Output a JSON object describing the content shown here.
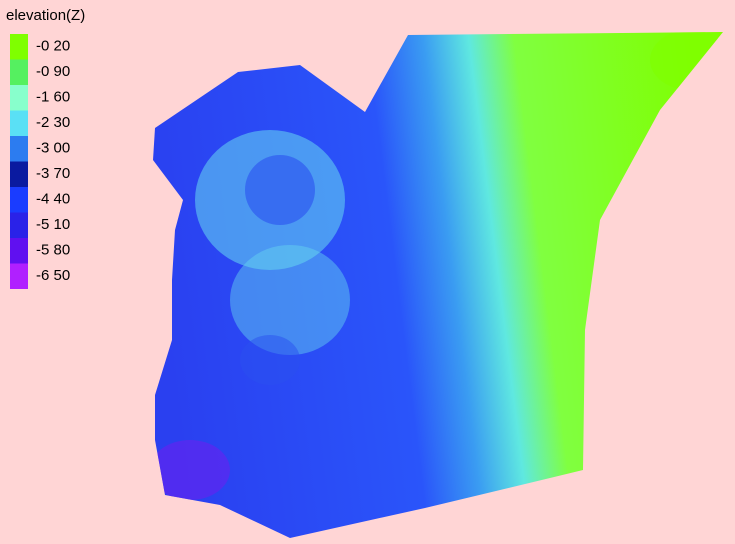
{
  "legend": {
    "title": "elevation(Z)",
    "entries": [
      {
        "label": "-0 20",
        "color": "#7fff00"
      },
      {
        "label": "-0 90",
        "color": "#55f060"
      },
      {
        "label": "-1 60",
        "color": "#88ffcc"
      },
      {
        "label": "-2 30",
        "color": "#5ae0f5"
      },
      {
        "label": "-3 00",
        "color": "#2c7cf0"
      },
      {
        "label": "-3 70",
        "color": "#0a1aa0"
      },
      {
        "label": "-4 40",
        "color": "#1a3cff"
      },
      {
        "label": "-5 10",
        "color": "#2a22e8"
      },
      {
        "label": "-5 80",
        "color": "#6010f0"
      },
      {
        "label": "-6 50",
        "color": "#b020ff"
      }
    ]
  }
}
